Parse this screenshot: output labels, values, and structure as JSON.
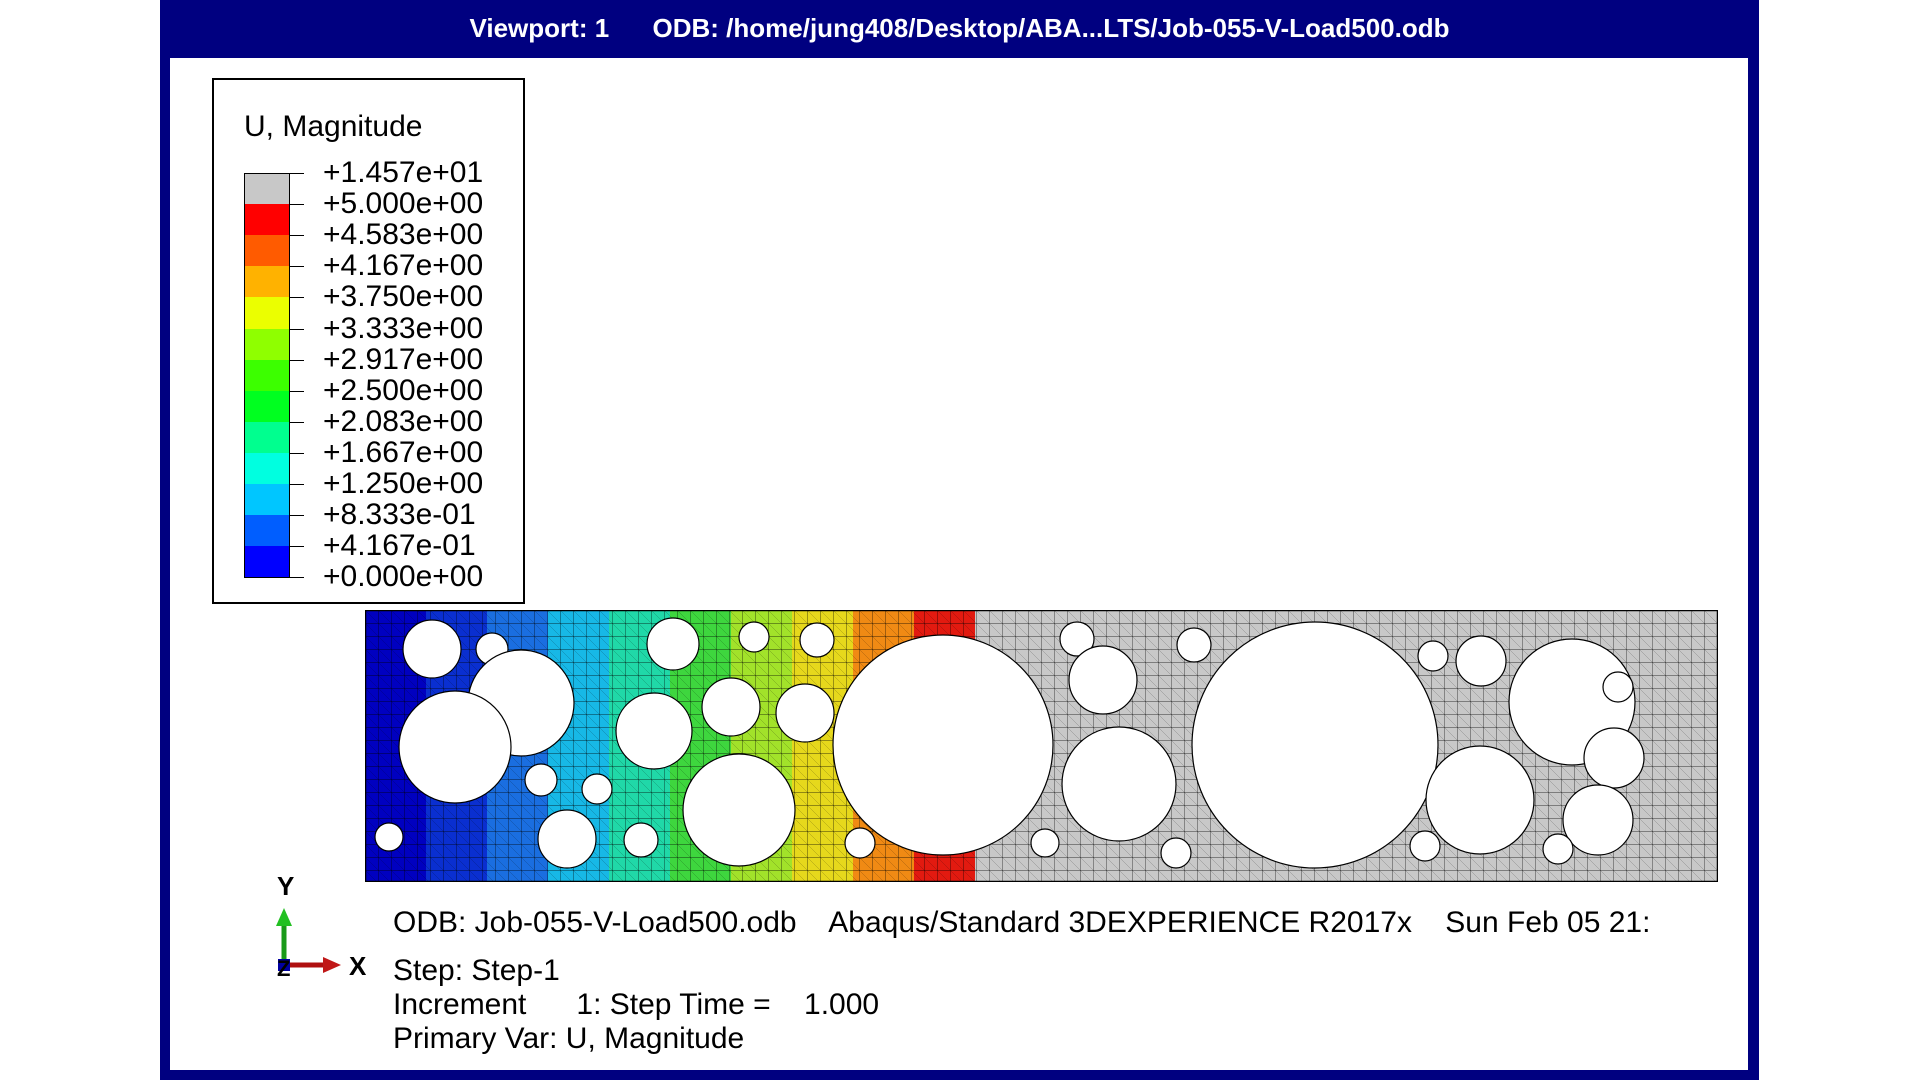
{
  "viewport": {
    "title_left": "Viewport: 1",
    "title_right": "ODB: /home/jung408/Desktop/ABA...LTS/Job-055-V-Load500.odb"
  },
  "legend": {
    "title": "U, Magnitude",
    "labels": [
      "+1.457e+01",
      "+5.000e+00",
      "+4.583e+00",
      "+4.167e+00",
      "+3.750e+00",
      "+3.333e+00",
      "+2.917e+00",
      "+2.500e+00",
      "+2.083e+00",
      "+1.667e+00",
      "+1.250e+00",
      "+8.333e-01",
      "+4.167e-01",
      "+0.000e+00"
    ],
    "colors": [
      "#c8c8c8",
      "#ff0000",
      "#ff5b00",
      "#ffb200",
      "#ebff00",
      "#8fff00",
      "#3cff00",
      "#00ff20",
      "#00ff8f",
      "#00ffe0",
      "#00c6ff",
      "#005eff",
      "#0000ff"
    ]
  },
  "model": {
    "fringe_colors": [
      "#0000c0",
      "#0a2fd0",
      "#1a6ee0",
      "#17b8e6",
      "#20d8a8",
      "#3ed63e",
      "#a2e22a",
      "#e6d81c",
      "#f08a14",
      "#e21a10"
    ],
    "deformed_color": "#c8c8c8"
  },
  "triad": {
    "y_label": "Y",
    "x_label": "X",
    "z_label": "Z"
  },
  "info": {
    "odb_line": "ODB: Job-055-V-Load500.odb    Abaqus/Standard 3DEXPERIENCE R2017x    Sun Feb 05 21:",
    "step_line": "Step: Step-1",
    "increment_line": "Increment      1: Step Time =    1.000",
    "primary_var_line": "Primary Var: U, Magnitude"
  }
}
